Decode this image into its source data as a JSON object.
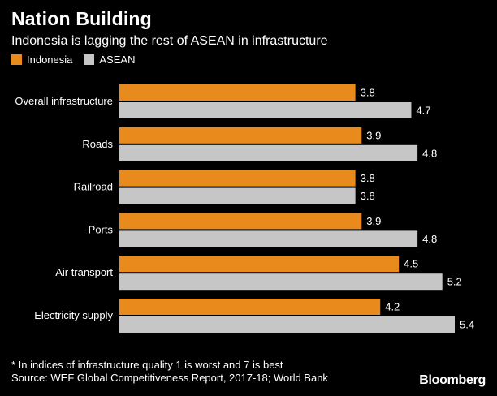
{
  "chart_data": {
    "type": "bar",
    "orientation": "horizontal",
    "title": "Nation Building",
    "subtitle": "Indonesia is lagging the rest of ASEAN in infrastructure",
    "categories": [
      "Overall infrastructure",
      "Roads",
      "Railroad",
      "Ports",
      "Air transport",
      "Electricity supply"
    ],
    "series": [
      {
        "name": "Indonesia",
        "color": "#e88b1c",
        "values": [
          3.8,
          3.9,
          3.8,
          3.9,
          4.5,
          4.2
        ]
      },
      {
        "name": "ASEAN",
        "color": "#c6c6c6",
        "values": [
          4.7,
          4.8,
          3.8,
          4.8,
          5.2,
          5.4
        ]
      }
    ],
    "xlim": [
      0,
      5.4
    ],
    "legend_position": "top-left",
    "grid": false
  },
  "footnote": {
    "note": "* In indices of infrastructure quality 1 is worst and 7 is best",
    "source": "Source: WEF Global Competitiveness Report, 2017-18; World Bank"
  },
  "brand": "Bloomberg"
}
